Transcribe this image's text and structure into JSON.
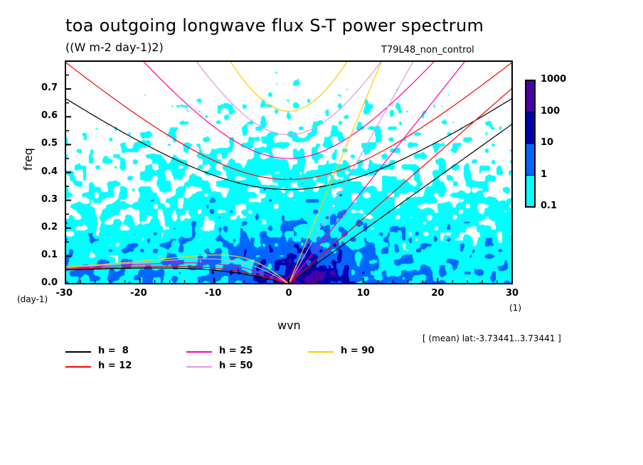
{
  "chart_data": {
    "type": "heatmap",
    "title": "toa outgoing longwave flux S-T power spectrum",
    "subtitle": "((W m-2 day-1)2)",
    "run_label": "T79L48_non_control",
    "xlabel": "wvn",
    "ylabel": "freq",
    "x_units": "(1)",
    "y_units": "(day-1)",
    "xlim": [
      -30,
      30
    ],
    "ylim": [
      0,
      0.8
    ],
    "x_ticks": [
      -30,
      -20,
      -10,
      0,
      10,
      20,
      30
    ],
    "x_tick_labels": [
      "-30",
      "-20",
      "-10",
      "0",
      "10",
      "20",
      "30"
    ],
    "y_ticks": [
      0.0,
      0.1,
      0.2,
      0.3,
      0.4,
      0.5,
      0.6,
      0.7
    ],
    "y_tick_labels": [
      "0.0",
      "0.1",
      "0.2",
      "0.3",
      "0.4",
      "0.5",
      "0.6",
      "0.7"
    ],
    "colorbar": {
      "levels": [
        0.1,
        1,
        10,
        100,
        1000
      ],
      "labels": [
        "0.1",
        "1",
        "10",
        "100",
        "1000"
      ],
      "colors": [
        "#00ffff",
        "#0066ff",
        "#0000b0",
        "#4a00a8"
      ]
    },
    "dispersion_curves": [
      {
        "label": "h =  8",
        "h": 8,
        "color": "#000000"
      },
      {
        "label": "h = 12",
        "h": 12,
        "color": "#ff0000"
      },
      {
        "label": "h = 25",
        "h": 25,
        "color": "#ff00aa"
      },
      {
        "label": "h = 50",
        "h": 50,
        "color": "#dd99dd"
      },
      {
        "label": "h = 90",
        "h": 90,
        "color": "#ffcc00"
      }
    ],
    "annotation": "[ (mean) lat:-3.73441..3.73441 ]"
  }
}
